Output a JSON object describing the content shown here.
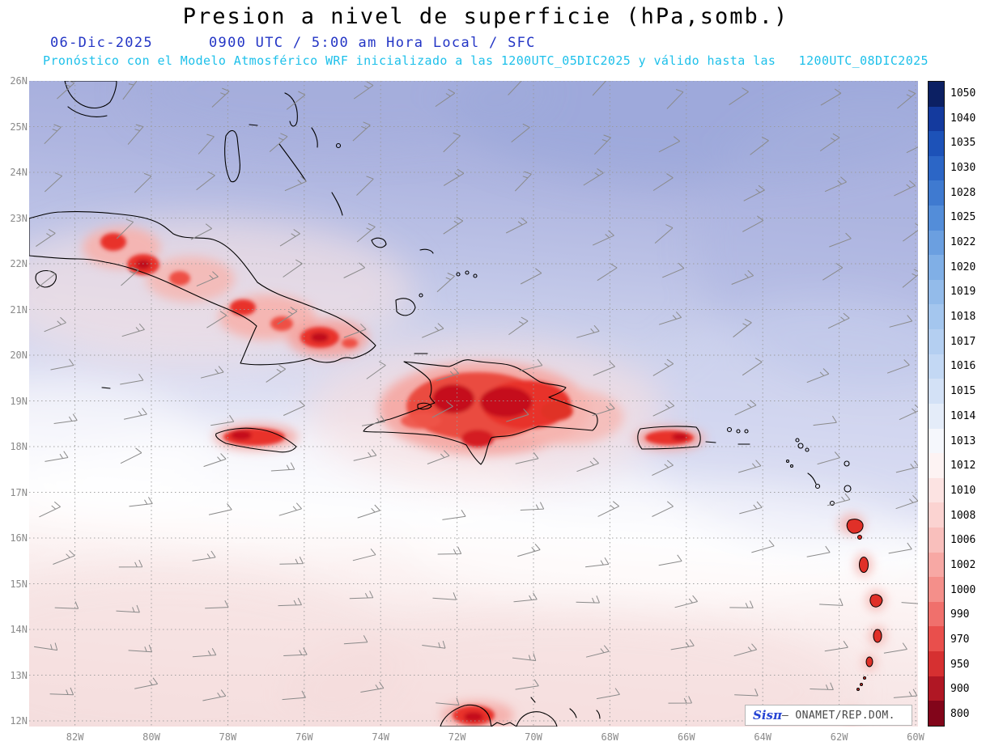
{
  "title": "Presion a nivel de superficie (hPa,somb.)",
  "header": {
    "date": "06-Dic-2025",
    "time": "0900 UTC / 5:00 am Hora Local / SFC",
    "forecast": "Pronóstico con el Modelo Atmosférico WRF inicializado a las 1200UTC_05DIC2025 y válido hasta las   1200UTC_08DIC2025"
  },
  "axes": {
    "lat_labels": [
      "26N",
      "25N",
      "24N",
      "23N",
      "22N",
      "21N",
      "20N",
      "19N",
      "18N",
      "17N",
      "16N",
      "15N",
      "14N",
      "13N",
      "12N"
    ],
    "lon_labels": [
      "82W",
      "80W",
      "78W",
      "76W",
      "74W",
      "72W",
      "70W",
      "68W",
      "66W",
      "64W",
      "62W",
      "60W"
    ]
  },
  "colorbar": {
    "labels": [
      "1050",
      "1040",
      "1035",
      "1030",
      "1028",
      "1025",
      "1022",
      "1020",
      "1019",
      "1018",
      "1017",
      "1016",
      "1015",
      "1014",
      "1013",
      "1012",
      "1010",
      "1008",
      "1006",
      "1002",
      "1000",
      "990",
      "970",
      "950",
      "900",
      "800"
    ],
    "colors": [
      "#0c2063",
      "#143a9e",
      "#1d52b8",
      "#2c66c6",
      "#3f7ad0",
      "#538dd9",
      "#6b9fe0",
      "#80afe6",
      "#93bbea",
      "#a4c6ee",
      "#b4cff1",
      "#c3d8f4",
      "#d3e1f6",
      "#e4ecf9",
      "#f5f7fc",
      "#fdf3f3",
      "#fce3e2",
      "#fbd3d1",
      "#f9bfbc",
      "#f7a8a4",
      "#f48f8a",
      "#f0706c",
      "#e94f4c",
      "#d63031",
      "#b01724",
      "#82051a"
    ]
  },
  "watermark": {
    "brand": "Sisπ",
    "text": "– ONAMET/REP.DOM."
  },
  "wind_barbs": {
    "color": "#8a8a8a",
    "rows": 14,
    "cols": 12
  }
}
